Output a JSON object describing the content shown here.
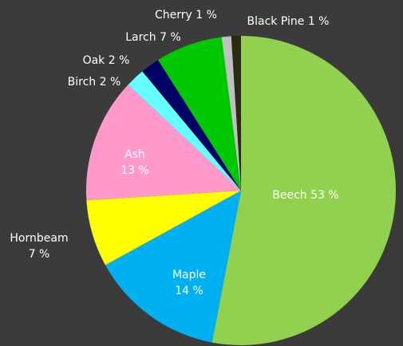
{
  "chart_data": {
    "type": "pie",
    "categories": [
      "Beech",
      "Maple",
      "Hornbeam",
      "Ash",
      "Birch",
      "Oak",
      "Larch",
      "Cherry",
      "Black Pine"
    ],
    "values": [
      53,
      14,
      7,
      13,
      2,
      2,
      7,
      1,
      1
    ],
    "value_labels": [
      "53 %",
      "14 %",
      "7 %",
      "13 %",
      "2 %",
      "2 %",
      "7 %",
      "1 %",
      "1 %"
    ],
    "colors": [
      "#92d050",
      "#00b0f0",
      "#ffff00",
      "#ff99cc",
      "#66ffff",
      "#000066",
      "#00c800",
      "#c0c0c0",
      "#2a2a10"
    ]
  }
}
